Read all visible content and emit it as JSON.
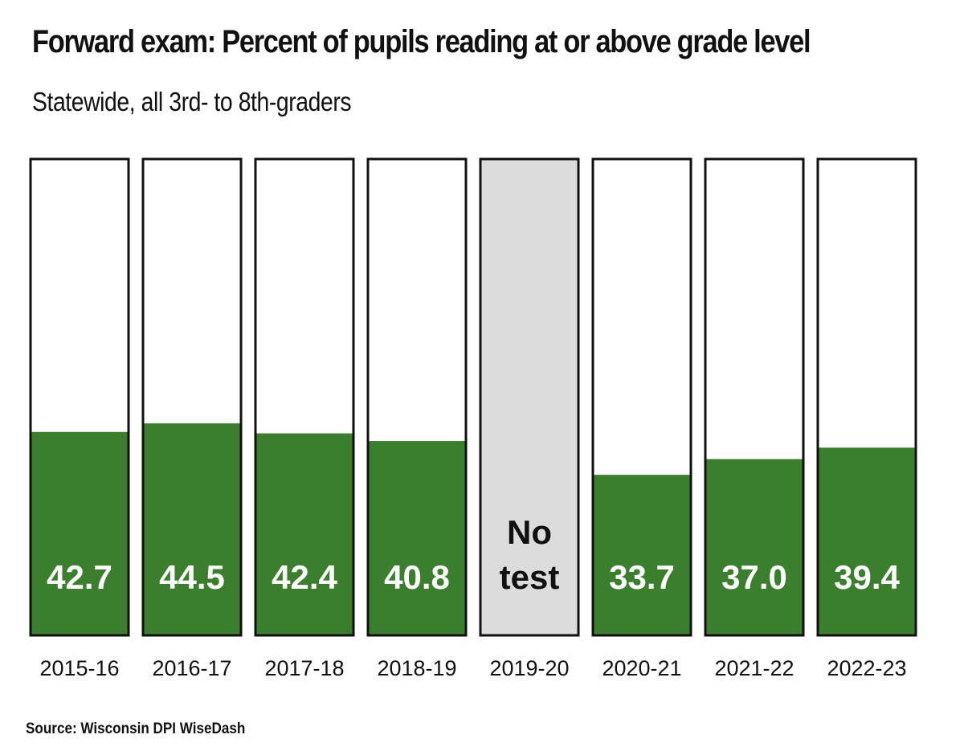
{
  "chart_data": {
    "type": "bar",
    "title": "Forward exam: Percent of pupils reading at or above grade level",
    "subtitle": "Statewide, all 3rd- to 8th-graders",
    "source": "Source: Wisconsin DPI WiseDash",
    "categories": [
      "2015-16",
      "2016-17",
      "2017-18",
      "2018-19",
      "2019-20",
      "2020-21",
      "2021-22",
      "2022-23"
    ],
    "values": [
      42.7,
      44.5,
      42.4,
      40.8,
      null,
      33.7,
      37.0,
      39.4
    ],
    "value_labels": [
      "42.7",
      "44.5",
      "42.4",
      "40.8",
      "",
      "33.7",
      "37.0",
      "39.4"
    ],
    "missing_label_lines": [
      "No",
      "test"
    ],
    "ylim": [
      0,
      100
    ],
    "grid": false,
    "legend": "none",
    "colors": {
      "bar_fill": "#3b7f2e",
      "missing_fill": "#dcdcdc",
      "outline": "#111111",
      "background": "#ffffff"
    }
  }
}
